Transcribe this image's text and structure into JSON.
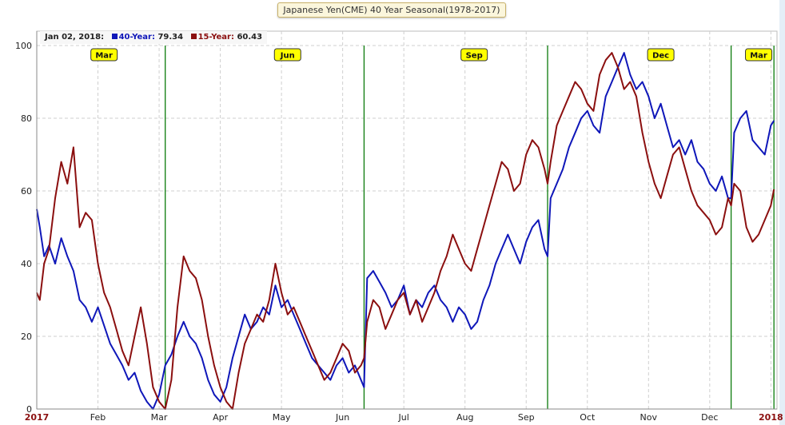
{
  "title": "Japanese Yen(CME) 40 Year Seasonal(1978-2017)",
  "legend": {
    "date": "Jan 02, 2018:",
    "series1_label": "40-Year:",
    "series1_value": "79.34",
    "series2_label": "15-Year:",
    "series2_value": "60.43"
  },
  "colors": {
    "series1": "#0f17b9",
    "series2": "#8b0f0f",
    "marker_fill": "#ffff00",
    "vertical_lines": "#0a7a0a",
    "grid": "#cfcfcf"
  },
  "chart_data": {
    "type": "line",
    "title": "Japanese Yen(CME) 40 Year Seasonal(1978-2017)",
    "ylim": [
      0,
      100
    ],
    "y_ticks": [
      0,
      20,
      40,
      60,
      80,
      100
    ],
    "x_tick_labels": [
      "2017",
      "Feb",
      "Mar",
      "Apr",
      "May",
      "Jun",
      "Jul",
      "Aug",
      "Sep",
      "Oct",
      "Nov",
      "Dec",
      "2018"
    ],
    "x_tick_pos": [
      0.5,
      1.5,
      2.5,
      3.5,
      4.5,
      5.5,
      6.5,
      7.5,
      8.5,
      9.5,
      10.5,
      11.5,
      12.5
    ],
    "bold_tick_labels": [
      "2017",
      "2018"
    ],
    "xlim": [
      0.5,
      12.6
    ],
    "season_markers": [
      {
        "label": "Mar",
        "x": 1.6
      },
      {
        "label": "Jun",
        "x": 4.6
      },
      {
        "label": "Sep",
        "x": 7.65
      },
      {
        "label": "Dec",
        "x": 10.7
      },
      {
        "label": "Mar",
        "x": 12.3
      }
    ],
    "vertical_lines": [
      2.6,
      5.85,
      8.85,
      11.85,
      12.55
    ],
    "grid": true,
    "series": [
      {
        "name": "40-Year",
        "x": [
          0.5,
          0.55,
          0.62,
          0.7,
          0.8,
          0.9,
          1.0,
          1.1,
          1.2,
          1.3,
          1.4,
          1.5,
          1.6,
          1.7,
          1.8,
          1.9,
          2.0,
          2.1,
          2.2,
          2.3,
          2.4,
          2.5,
          2.6,
          2.7,
          2.8,
          2.9,
          3.0,
          3.1,
          3.2,
          3.3,
          3.4,
          3.5,
          3.6,
          3.7,
          3.8,
          3.9,
          4.0,
          4.1,
          4.2,
          4.3,
          4.4,
          4.5,
          4.6,
          4.7,
          4.8,
          4.9,
          5.0,
          5.1,
          5.2,
          5.3,
          5.4,
          5.5,
          5.6,
          5.7,
          5.8,
          5.85,
          5.9,
          6.0,
          6.1,
          6.2,
          6.3,
          6.4,
          6.5,
          6.6,
          6.7,
          6.8,
          6.9,
          7.0,
          7.1,
          7.2,
          7.3,
          7.4,
          7.5,
          7.6,
          7.7,
          7.8,
          7.9,
          8.0,
          8.1,
          8.2,
          8.3,
          8.4,
          8.5,
          8.6,
          8.7,
          8.8,
          8.85,
          8.9,
          9.0,
          9.1,
          9.2,
          9.3,
          9.4,
          9.5,
          9.6,
          9.7,
          9.8,
          9.9,
          10.0,
          10.1,
          10.2,
          10.3,
          10.4,
          10.5,
          10.6,
          10.7,
          10.8,
          10.9,
          11.0,
          11.1,
          11.2,
          11.3,
          11.4,
          11.5,
          11.6,
          11.7,
          11.8,
          11.85,
          11.9,
          12.0,
          12.1,
          12.2,
          12.3,
          12.4,
          12.5,
          12.55
        ],
        "y": [
          55,
          50,
          42,
          45,
          40,
          47,
          42,
          38,
          30,
          28,
          24,
          28,
          23,
          18,
          15,
          12,
          8,
          10,
          5,
          2,
          0,
          4,
          12,
          15,
          20,
          24,
          20,
          18,
          14,
          8,
          4,
          2,
          6,
          14,
          20,
          26,
          22,
          24,
          28,
          26,
          34,
          28,
          30,
          26,
          22,
          18,
          14,
          12,
          10,
          8,
          12,
          14,
          10,
          12,
          8,
          6,
          36,
          38,
          35,
          32,
          28,
          30,
          34,
          26,
          30,
          28,
          32,
          34,
          30,
          28,
          24,
          28,
          26,
          22,
          24,
          30,
          34,
          40,
          44,
          48,
          44,
          40,
          46,
          50,
          52,
          44,
          42,
          58,
          62,
          66,
          72,
          76,
          80,
          82,
          78,
          76,
          86,
          90,
          94,
          98,
          92,
          88,
          90,
          86,
          80,
          84,
          78,
          72,
          74,
          70,
          74,
          68,
          66,
          62,
          60,
          64,
          58,
          58,
          76,
          80,
          82,
          74,
          72,
          70,
          78,
          79.34
        ],
        "color": "#0f17b9"
      },
      {
        "name": "15-Year",
        "x": [
          0.5,
          0.55,
          0.62,
          0.7,
          0.8,
          0.9,
          1.0,
          1.1,
          1.2,
          1.3,
          1.4,
          1.5,
          1.6,
          1.7,
          1.8,
          1.9,
          2.0,
          2.1,
          2.2,
          2.3,
          2.4,
          2.5,
          2.6,
          2.7,
          2.8,
          2.9,
          3.0,
          3.1,
          3.2,
          3.3,
          3.4,
          3.5,
          3.6,
          3.7,
          3.8,
          3.9,
          4.0,
          4.1,
          4.2,
          4.3,
          4.4,
          4.5,
          4.6,
          4.7,
          4.8,
          4.9,
          5.0,
          5.1,
          5.2,
          5.3,
          5.4,
          5.5,
          5.6,
          5.7,
          5.8,
          5.85,
          5.9,
          6.0,
          6.1,
          6.2,
          6.3,
          6.4,
          6.5,
          6.6,
          6.7,
          6.8,
          6.9,
          7.0,
          7.1,
          7.2,
          7.3,
          7.4,
          7.5,
          7.6,
          7.7,
          7.8,
          7.9,
          8.0,
          8.1,
          8.2,
          8.3,
          8.4,
          8.5,
          8.6,
          8.7,
          8.8,
          8.85,
          8.9,
          9.0,
          9.1,
          9.2,
          9.3,
          9.4,
          9.5,
          9.6,
          9.7,
          9.8,
          9.9,
          10.0,
          10.1,
          10.2,
          10.3,
          10.4,
          10.5,
          10.6,
          10.7,
          10.8,
          10.9,
          11.0,
          11.1,
          11.2,
          11.3,
          11.4,
          11.5,
          11.6,
          11.7,
          11.8,
          11.85,
          11.9,
          12.0,
          12.1,
          12.2,
          12.3,
          12.4,
          12.5,
          12.55
        ],
        "y": [
          32,
          30,
          40,
          44,
          58,
          68,
          62,
          72,
          50,
          54,
          52,
          40,
          32,
          28,
          22,
          16,
          12,
          20,
          28,
          18,
          6,
          2,
          0,
          8,
          28,
          42,
          38,
          36,
          30,
          20,
          12,
          6,
          2,
          0,
          10,
          18,
          22,
          26,
          24,
          30,
          40,
          32,
          26,
          28,
          24,
          20,
          16,
          12,
          8,
          10,
          14,
          18,
          16,
          10,
          12,
          14,
          24,
          30,
          28,
          22,
          26,
          30,
          32,
          26,
          30,
          24,
          28,
          32,
          38,
          42,
          48,
          44,
          40,
          38,
          44,
          50,
          56,
          62,
          68,
          66,
          60,
          62,
          70,
          74,
          72,
          66,
          62,
          68,
          78,
          82,
          86,
          90,
          88,
          84,
          82,
          92,
          96,
          98,
          94,
          88,
          90,
          86,
          76,
          68,
          62,
          58,
          64,
          70,
          72,
          66,
          60,
          56,
          54,
          52,
          48,
          50,
          58,
          56,
          62,
          60,
          50,
          46,
          48,
          52,
          56,
          60.43
        ],
        "color": "#8b0f0f"
      }
    ]
  }
}
